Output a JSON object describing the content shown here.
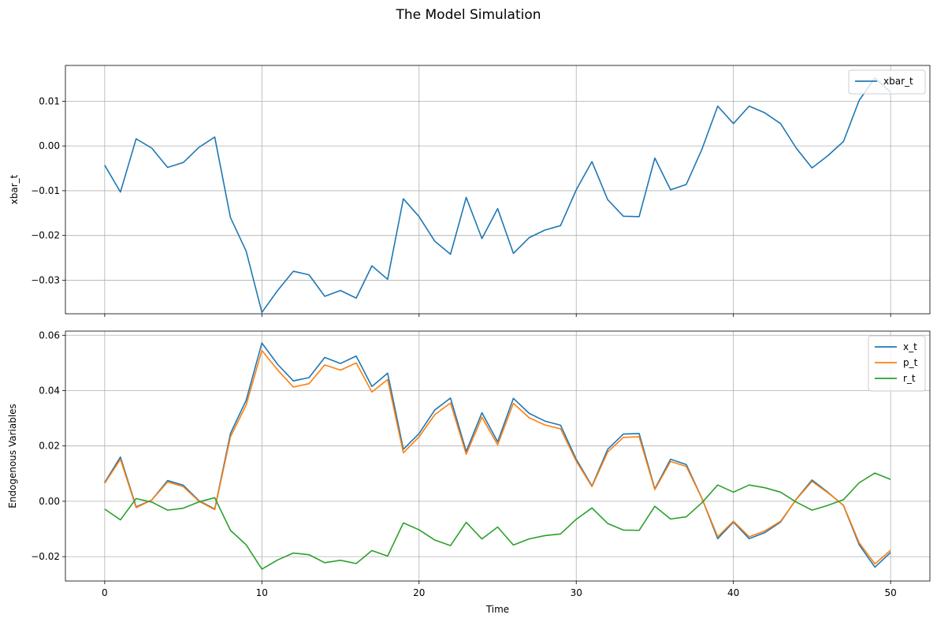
{
  "figure": {
    "suptitle": "The Model Simulation"
  },
  "chart_data": [
    {
      "type": "line",
      "title": "",
      "xlabel": "",
      "ylabel": "xbar_t",
      "xlim": [
        -2.5,
        52.5
      ],
      "ylim": [
        -0.0375,
        0.018
      ],
      "xticks": [
        0,
        10,
        20,
        30,
        40,
        50
      ],
      "yticks": [
        -0.03,
        -0.02,
        -0.01,
        0.0,
        0.01
      ],
      "ytick_labels": [
        "−0.03",
        "−0.02",
        "−0.01",
        "0.00",
        "0.01"
      ],
      "xtick_labels_visible": false,
      "grid": true,
      "legend": "top-right",
      "x": [
        0,
        1,
        2,
        3,
        4,
        5,
        6,
        7,
        8,
        9,
        10,
        11,
        12,
        13,
        14,
        15,
        16,
        17,
        18,
        19,
        20,
        21,
        22,
        23,
        24,
        25,
        26,
        27,
        28,
        29,
        30,
        31,
        32,
        33,
        34,
        35,
        36,
        37,
        38,
        39,
        40,
        41,
        42,
        43,
        44,
        45,
        46,
        47,
        48,
        49,
        50
      ],
      "series": [
        {
          "name": "xbar_t",
          "color": "#1f77b4",
          "values": [
            -0.0043,
            -0.0103,
            0.0016,
            -0.0005,
            -0.0048,
            -0.0037,
            -0.0003,
            0.002,
            -0.016,
            -0.0235,
            -0.0372,
            -0.0323,
            -0.028,
            -0.0288,
            -0.0336,
            -0.0323,
            -0.034,
            -0.0268,
            -0.0298,
            -0.0118,
            -0.0158,
            -0.0213,
            -0.0242,
            -0.0115,
            -0.0207,
            -0.014,
            -0.024,
            -0.0205,
            -0.0188,
            -0.0178,
            -0.0098,
            -0.0035,
            -0.012,
            -0.0157,
            -0.0158,
            -0.0027,
            -0.0098,
            -0.0086,
            -0.0007,
            0.0089,
            0.005,
            0.0089,
            0.0074,
            0.005,
            -0.0005,
            -0.0049,
            -0.0022,
            0.001,
            0.0102,
            0.0152,
            0.012
          ]
        }
      ]
    },
    {
      "type": "line",
      "title": "",
      "xlabel": "Time",
      "ylabel": "Endogenous Variables",
      "xlim": [
        -2.5,
        52.5
      ],
      "ylim": [
        -0.0288,
        0.0615
      ],
      "xticks": [
        0,
        10,
        20,
        30,
        40,
        50
      ],
      "xtick_labels": [
        "0",
        "10",
        "20",
        "30",
        "40",
        "50"
      ],
      "yticks": [
        -0.02,
        0.0,
        0.02,
        0.04,
        0.06
      ],
      "ytick_labels": [
        "−0.02",
        "0.00",
        "0.02",
        "0.04",
        "0.06"
      ],
      "grid": true,
      "legend": "top-right",
      "x": [
        0,
        1,
        2,
        3,
        4,
        5,
        6,
        7,
        8,
        9,
        10,
        11,
        12,
        13,
        14,
        15,
        16,
        17,
        18,
        19,
        20,
        21,
        22,
        23,
        24,
        25,
        26,
        27,
        28,
        29,
        30,
        31,
        32,
        33,
        34,
        35,
        36,
        37,
        38,
        39,
        40,
        41,
        42,
        43,
        44,
        45,
        46,
        47,
        48,
        49,
        50
      ],
      "series": [
        {
          "name": "x_t",
          "color": "#1f77b4",
          "values": [
            0.0068,
            0.016,
            -0.002,
            0.0005,
            0.0075,
            0.0058,
            0.0002,
            -0.0028,
            0.0245,
            0.0365,
            0.0572,
            0.0495,
            0.0435,
            0.0447,
            0.052,
            0.0498,
            0.0525,
            0.0415,
            0.0463,
            0.0188,
            0.0245,
            0.033,
            0.0373,
            0.018,
            0.032,
            0.0215,
            0.0372,
            0.0318,
            0.029,
            0.0275,
            0.0152,
            0.0055,
            0.0188,
            0.0243,
            0.0245,
            0.0045,
            0.0152,
            0.0133,
            0.001,
            -0.0135,
            -0.0075,
            -0.0135,
            -0.0113,
            -0.0075,
            0.0008,
            0.0077,
            0.0033,
            -0.0015,
            -0.0157,
            -0.0238,
            -0.0185
          ]
        },
        {
          "name": "p_t",
          "color": "#ff7f0e",
          "values": [
            0.0065,
            0.0152,
            -0.0023,
            0.0005,
            0.007,
            0.0053,
            0.0,
            -0.003,
            0.0233,
            0.0348,
            0.0545,
            0.0475,
            0.0413,
            0.0425,
            0.0493,
            0.0474,
            0.05,
            0.0395,
            0.044,
            0.0175,
            0.0233,
            0.0313,
            0.0355,
            0.017,
            0.0304,
            0.0204,
            0.0354,
            0.0302,
            0.0276,
            0.0262,
            0.0145,
            0.0053,
            0.0178,
            0.0231,
            0.0233,
            0.0042,
            0.0144,
            0.0126,
            0.001,
            -0.0128,
            -0.0072,
            -0.0128,
            -0.0107,
            -0.0072,
            0.0007,
            0.0072,
            0.0031,
            -0.0014,
            -0.015,
            -0.0226,
            -0.0177
          ]
        },
        {
          "name": "r_t",
          "color": "#2ca02c",
          "values": [
            -0.0028,
            -0.0067,
            0.001,
            -0.0003,
            -0.0032,
            -0.0025,
            -0.0002,
            0.0013,
            -0.0105,
            -0.0157,
            -0.0245,
            -0.0212,
            -0.0187,
            -0.0193,
            -0.0222,
            -0.0213,
            -0.0225,
            -0.0178,
            -0.0198,
            -0.0078,
            -0.0103,
            -0.014,
            -0.016,
            -0.0076,
            -0.0136,
            -0.0093,
            -0.0158,
            -0.0136,
            -0.0124,
            -0.0118,
            -0.0065,
            -0.0024,
            -0.008,
            -0.0104,
            -0.0105,
            -0.0018,
            -0.0064,
            -0.0056,
            -0.0005,
            0.0059,
            0.0033,
            0.0059,
            0.0049,
            0.0033,
            -0.0003,
            -0.0032,
            -0.0015,
            0.0006,
            0.0067,
            0.0102,
            0.0079
          ]
        }
      ]
    }
  ]
}
